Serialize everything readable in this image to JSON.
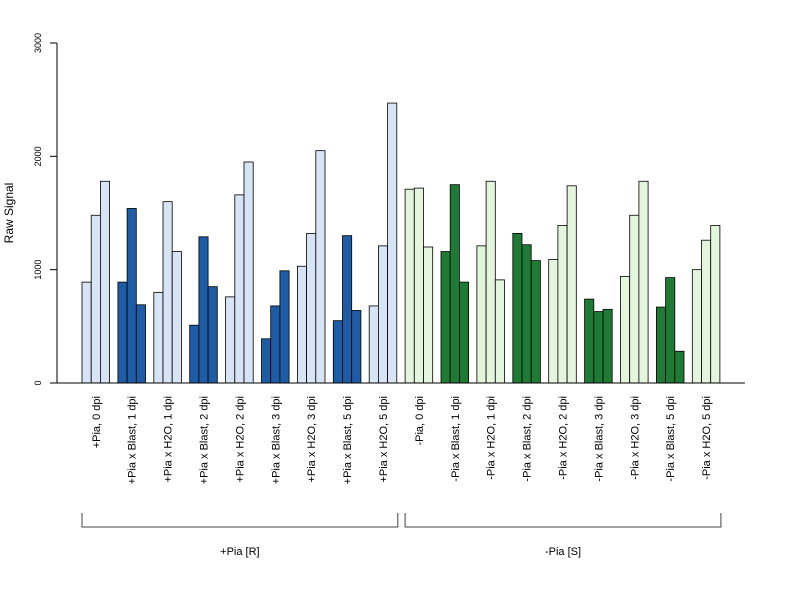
{
  "chart_data": {
    "type": "bar",
    "ylabel": "Raw Signal",
    "ylim": [
      0,
      3000
    ],
    "yticks": [
      "0",
      "1000",
      "2000",
      "3000"
    ],
    "bars_per_group": 3,
    "categories": [
      "+Pia, 0 dpi",
      "+Pia x Blast, 1 dpi",
      "+Pia x H2O, 1 dpi",
      "+Pia x Blast, 2 dpi",
      "+Pia x H2O, 2 dpi",
      "+Pia x Blast, 3 dpi",
      "+Pia x H2O, 3 dpi",
      "+Pia x Blast, 5 dpi",
      "+Pia x H2O, 5 dpi",
      "-Pia, 0 dpi",
      "-Pia x Blast, 1 dpi",
      "-Pia x H2O, 1 dpi",
      "-Pia x Blast, 2 dpi",
      "-Pia x H2O, 2 dpi",
      "-Pia x Blast, 3 dpi",
      "-Pia x H2O, 3 dpi",
      "-Pia x Blast, 5 dpi",
      "-Pia x H2O, 5 dpi"
    ],
    "values": [
      [
        890,
        1480,
        1780
      ],
      [
        890,
        1540,
        690
      ],
      [
        800,
        1600,
        1160
      ],
      [
        510,
        1290,
        850
      ],
      [
        760,
        1660,
        1950
      ],
      [
        390,
        680,
        990
      ],
      [
        1030,
        1320,
        2050
      ],
      [
        550,
        1300,
        640
      ],
      [
        680,
        1210,
        2470
      ],
      [
        1710,
        1720,
        1200
      ],
      [
        1160,
        1750,
        890
      ],
      [
        1210,
        1780,
        910
      ],
      [
        1320,
        1220,
        1080
      ],
      [
        1090,
        1390,
        1740
      ],
      [
        740,
        630,
        650
      ],
      [
        940,
        1480,
        1780
      ],
      [
        670,
        930,
        280
      ],
      [
        1000,
        1260,
        1390
      ]
    ],
    "bar_colors": [
      "#d6e4f5",
      "#1f5ca6",
      "#d6e4f5",
      "#1f5ca6",
      "#d6e4f5",
      "#1f5ca6",
      "#d6e4f5",
      "#1f5ca6",
      "#d6e4f5",
      "#e3f5dc",
      "#1e7a35",
      "#e3f5dc",
      "#1e7a35",
      "#e3f5dc",
      "#1e7a35",
      "#e3f5dc",
      "#1e7a35",
      "#e3f5dc"
    ],
    "groups": [
      {
        "label": "+Pia [R]",
        "from": 0,
        "to": 8
      },
      {
        "label": "-Pia [S]",
        "from": 9,
        "to": 17
      }
    ],
    "grid": false
  }
}
